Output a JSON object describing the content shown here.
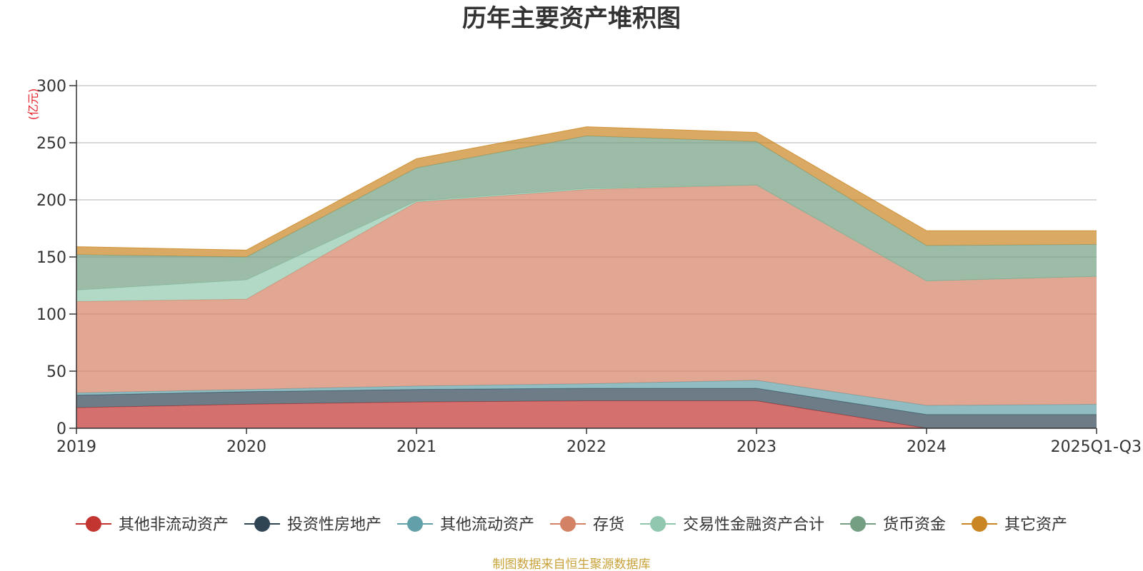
{
  "chart_data": {
    "type": "area",
    "stacked": true,
    "title": "历年主要资产堆积图",
    "ylabel": "(亿元)",
    "xlabel": "",
    "ylim": [
      0,
      300
    ],
    "yticks": [
      0,
      50,
      100,
      150,
      200,
      250,
      300
    ],
    "categories": [
      "2019",
      "2020",
      "2021",
      "2022",
      "2023",
      "2024",
      "2025Q1-Q3"
    ],
    "series": [
      {
        "name": "其他非流动资产",
        "color": "#c23531",
        "values": [
          18,
          21,
          23,
          24,
          24,
          0,
          0
        ]
      },
      {
        "name": "投资性房地产",
        "color": "#2f4554",
        "values": [
          11,
          11,
          11,
          11,
          11,
          12,
          12
        ]
      },
      {
        "name": "其他流动资产",
        "color": "#61a0a8",
        "values": [
          2,
          2,
          3,
          4,
          7,
          8,
          9
        ]
      },
      {
        "name": "存货",
        "color": "#d48265",
        "values": [
          80,
          79,
          161,
          170,
          171,
          109,
          112
        ]
      },
      {
        "name": "交易性金融资产合计",
        "color": "#91c7ae",
        "values": [
          10,
          17,
          1,
          1,
          0,
          0,
          0
        ]
      },
      {
        "name": "货币资金",
        "color": "#749f83",
        "values": [
          31,
          20,
          29,
          46,
          38,
          31,
          28
        ]
      },
      {
        "name": "其它资产",
        "color": "#ca8622",
        "values": [
          7,
          6,
          8,
          8,
          8,
          13,
          12
        ]
      }
    ],
    "legend_position": "bottom",
    "grid": true
  },
  "footer": {
    "source": "制图数据来自恒生聚源数据库"
  }
}
